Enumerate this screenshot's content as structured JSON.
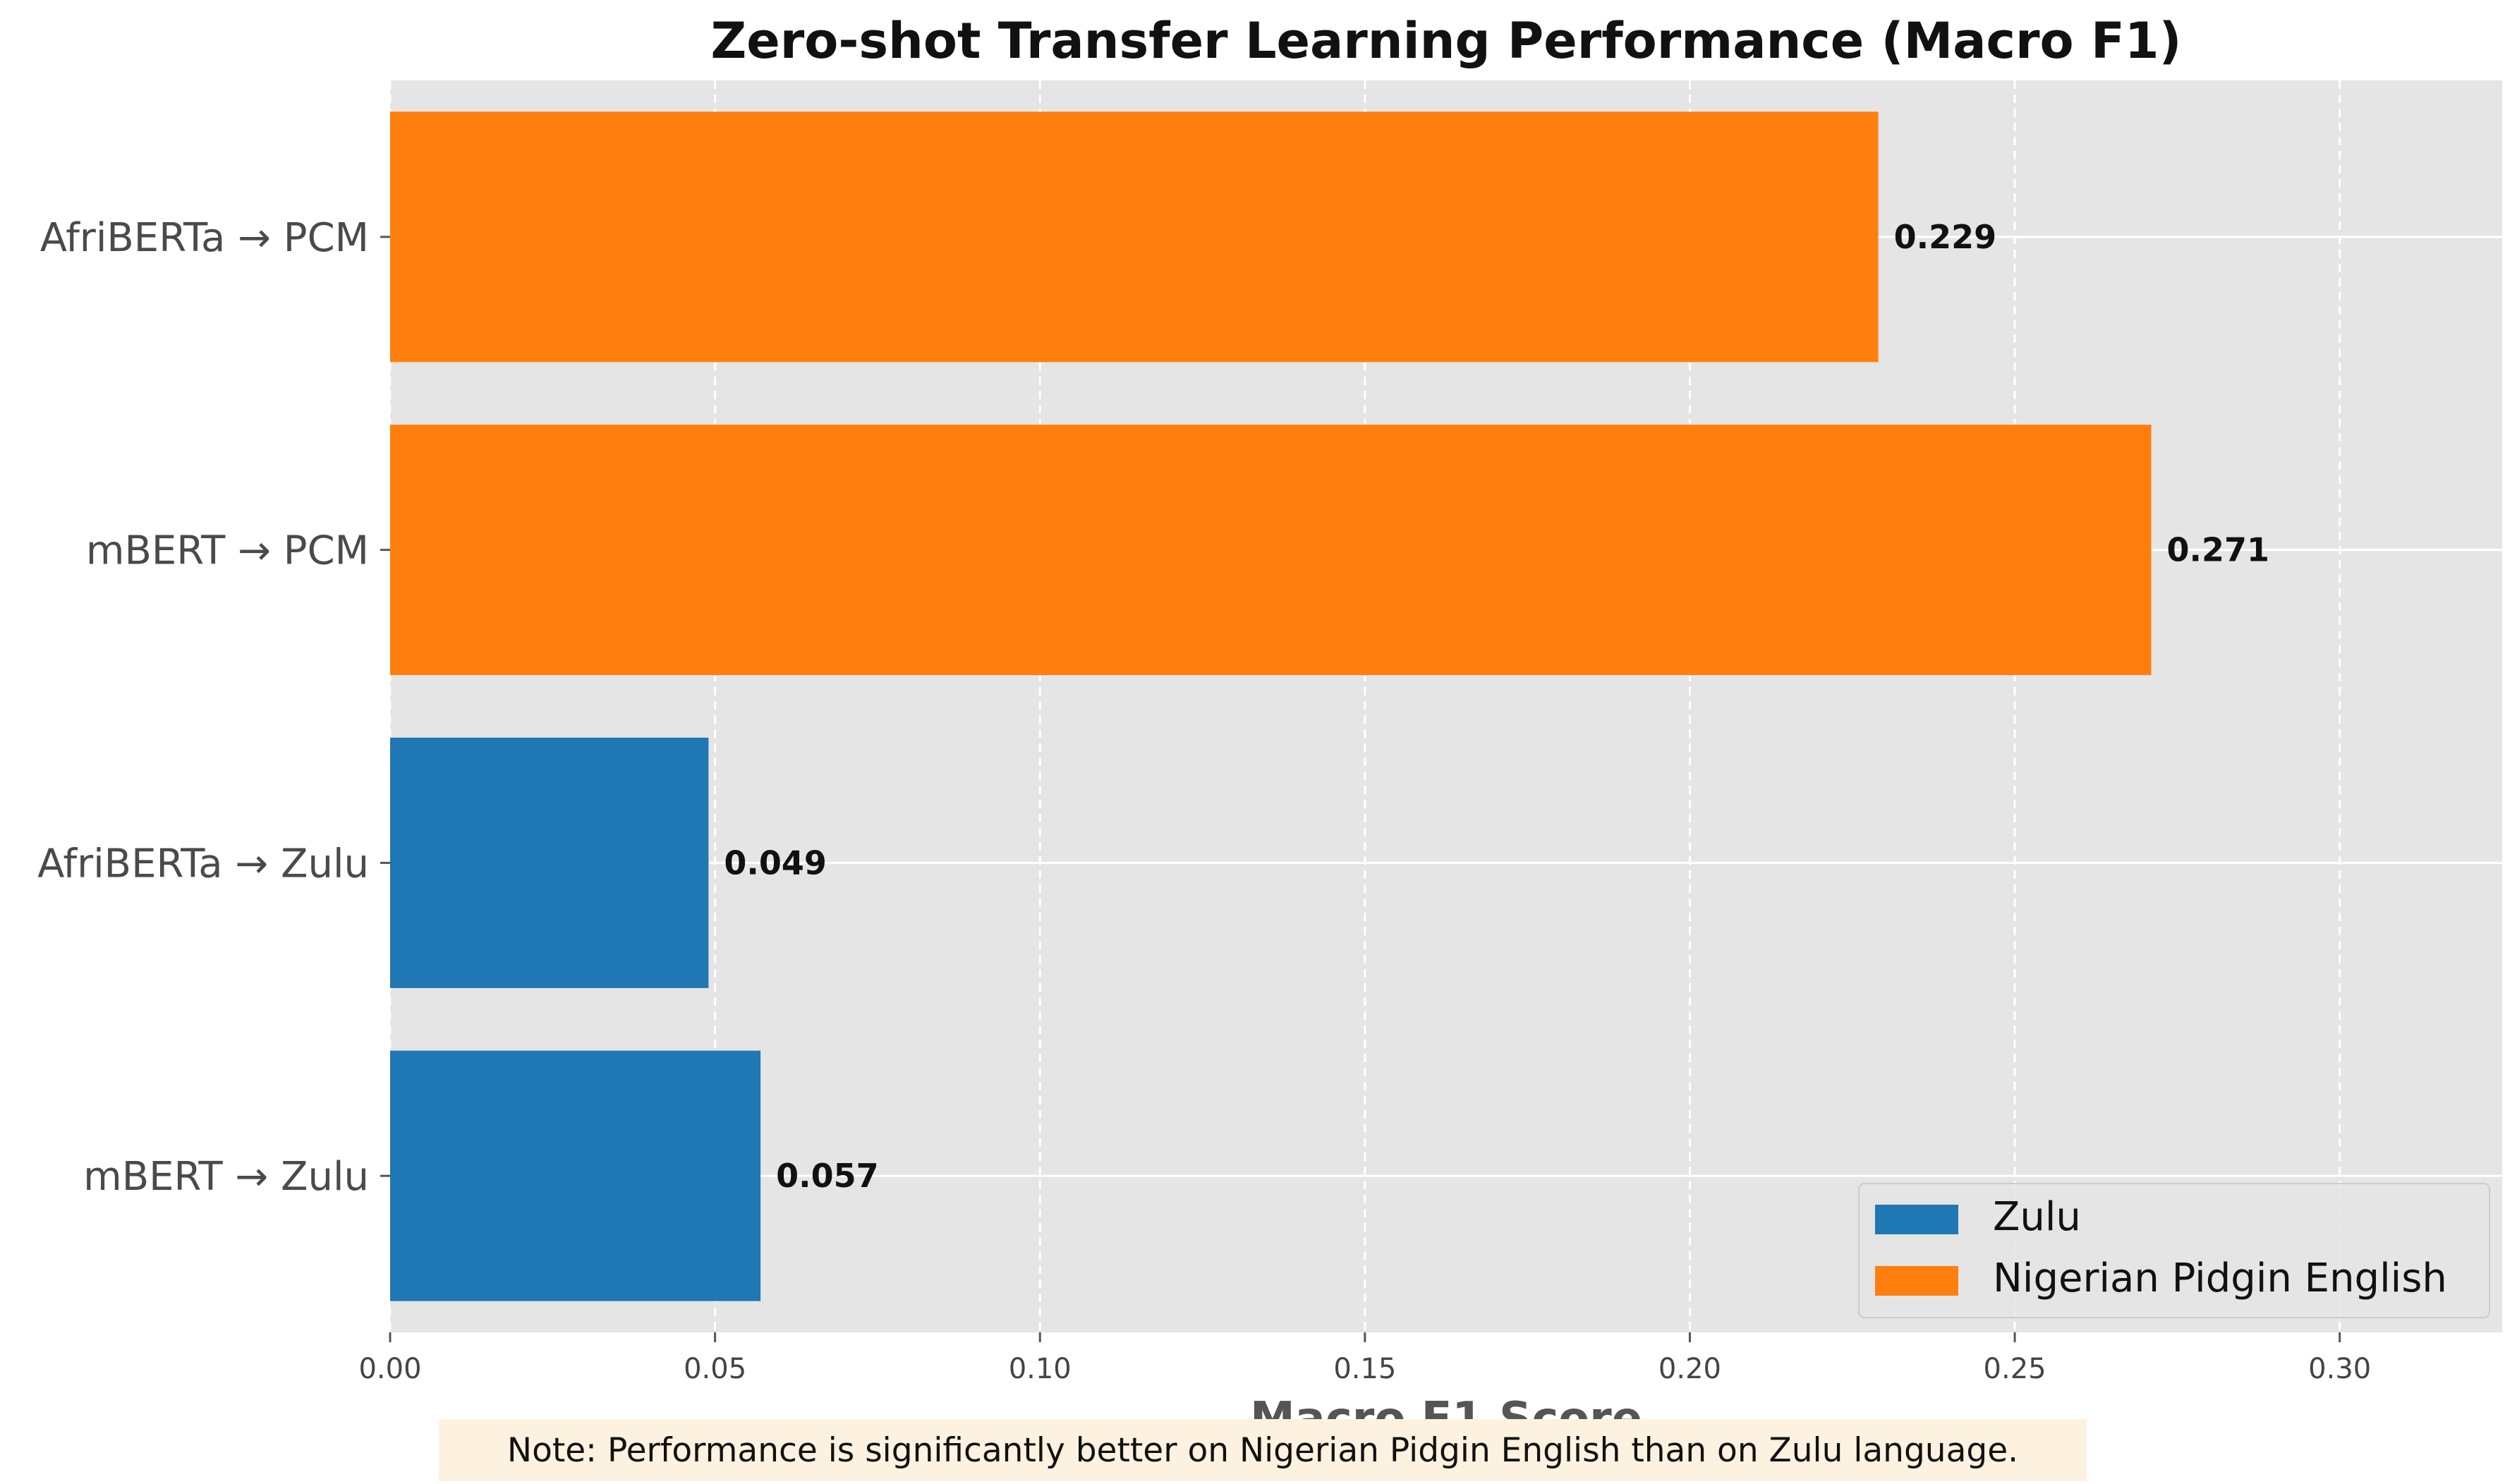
{
  "chart_data": {
    "type": "bar",
    "orientation": "horizontal",
    "title": "Zero-shot Transfer Learning Performance (Macro F1)",
    "xlabel": "Macro F1 Score",
    "ylabel": "",
    "xlim": [
      0,
      0.325
    ],
    "xticks": [
      "0.00",
      "0.05",
      "0.10",
      "0.15",
      "0.20",
      "0.25",
      "0.30"
    ],
    "xtick_values": [
      0,
      0.05,
      0.1,
      0.15,
      0.2,
      0.25,
      0.3
    ],
    "categories": [
      "AfriBERTa → PCM",
      "mBERT → PCM",
      "AfriBERTa → Zulu",
      "mBERT → Zulu"
    ],
    "values": [
      0.229,
      0.271,
      0.049,
      0.057
    ],
    "value_labels": [
      "0.229",
      "0.271",
      "0.049",
      "0.057"
    ],
    "bar_series": [
      "Nigerian Pidgin English",
      "Nigerian Pidgin English",
      "Zulu",
      "Zulu"
    ],
    "series": [
      {
        "name": "Zulu",
        "color": "#1f77b4"
      },
      {
        "name": "Nigerian Pidgin English",
        "color": "#ff7f0e"
      }
    ],
    "grid": true,
    "legend_position": "bottom-right",
    "note": "Note: Performance is significantly better on Nigerian Pidgin English than on Zulu language."
  }
}
